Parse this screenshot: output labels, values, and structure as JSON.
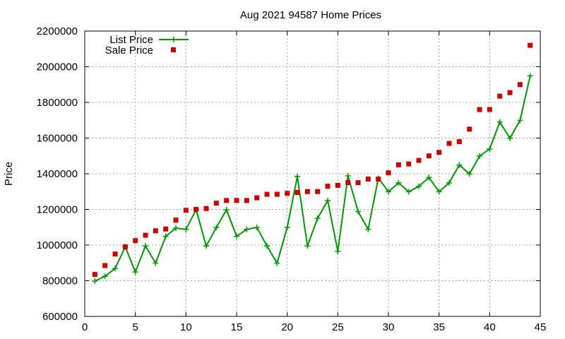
{
  "chart_data": {
    "type": "line",
    "title": "Aug 2021 94587 Home Prices",
    "xlabel": "",
    "ylabel": "Price",
    "xlim": [
      0,
      45
    ],
    "ylim": [
      600000,
      2200000
    ],
    "x_ticks": [
      0,
      5,
      10,
      15,
      20,
      25,
      30,
      35,
      40,
      45
    ],
    "y_ticks": [
      600000,
      800000,
      1000000,
      1200000,
      1400000,
      1600000,
      1800000,
      2000000,
      2200000
    ],
    "x_tick_labels": [
      "0",
      "5",
      "10",
      "15",
      "20",
      "25",
      "30",
      "35",
      "40",
      "45"
    ],
    "y_tick_labels": [
      "600000",
      "800000",
      "1000000",
      "1200000",
      "1400000",
      "1600000",
      "1800000",
      "2000000",
      "2200000"
    ],
    "grid": true,
    "legend_position": "top-left",
    "x": [
      1,
      2,
      3,
      4,
      5,
      6,
      7,
      8,
      9,
      10,
      11,
      12,
      13,
      14,
      15,
      16,
      17,
      18,
      19,
      20,
      21,
      22,
      23,
      24,
      25,
      26,
      27,
      28,
      29,
      30,
      31,
      32,
      33,
      34,
      35,
      36,
      37,
      38,
      39,
      40,
      41,
      42,
      43,
      44
    ],
    "series": [
      {
        "name": "List Price",
        "style": "line-with-plus-markers",
        "color": "#009900",
        "values": [
          798000,
          825000,
          869000,
          990000,
          849000,
          995000,
          899000,
          1049000,
          1095000,
          1088000,
          1199000,
          995000,
          1098000,
          1198000,
          1049000,
          1088000,
          1099000,
          995000,
          899000,
          1099000,
          1385000,
          995000,
          1150000,
          1249000,
          965000,
          1388000,
          1188000,
          1088000,
          1375000,
          1299000,
          1349000,
          1299000,
          1329000,
          1379000,
          1299000,
          1349000,
          1449000,
          1399000,
          1499000,
          1539000,
          1690000,
          1599000,
          1699000,
          1949000
        ]
      },
      {
        "name": "Sale Price",
        "style": "square-markers",
        "color": "#cc0000",
        "values": [
          835000,
          885000,
          950000,
          990000,
          1025000,
          1055000,
          1080000,
          1090000,
          1140000,
          1195000,
          1200000,
          1205000,
          1235000,
          1250000,
          1250000,
          1250000,
          1265000,
          1285000,
          1285000,
          1290000,
          1295000,
          1300000,
          1300000,
          1330000,
          1335000,
          1350000,
          1350000,
          1370000,
          1370000,
          1405000,
          1450000,
          1455000,
          1475000,
          1500000,
          1520000,
          1570000,
          1580000,
          1650000,
          1760000,
          1760000,
          1835000,
          1855000,
          1900000,
          2120000
        ]
      }
    ]
  }
}
